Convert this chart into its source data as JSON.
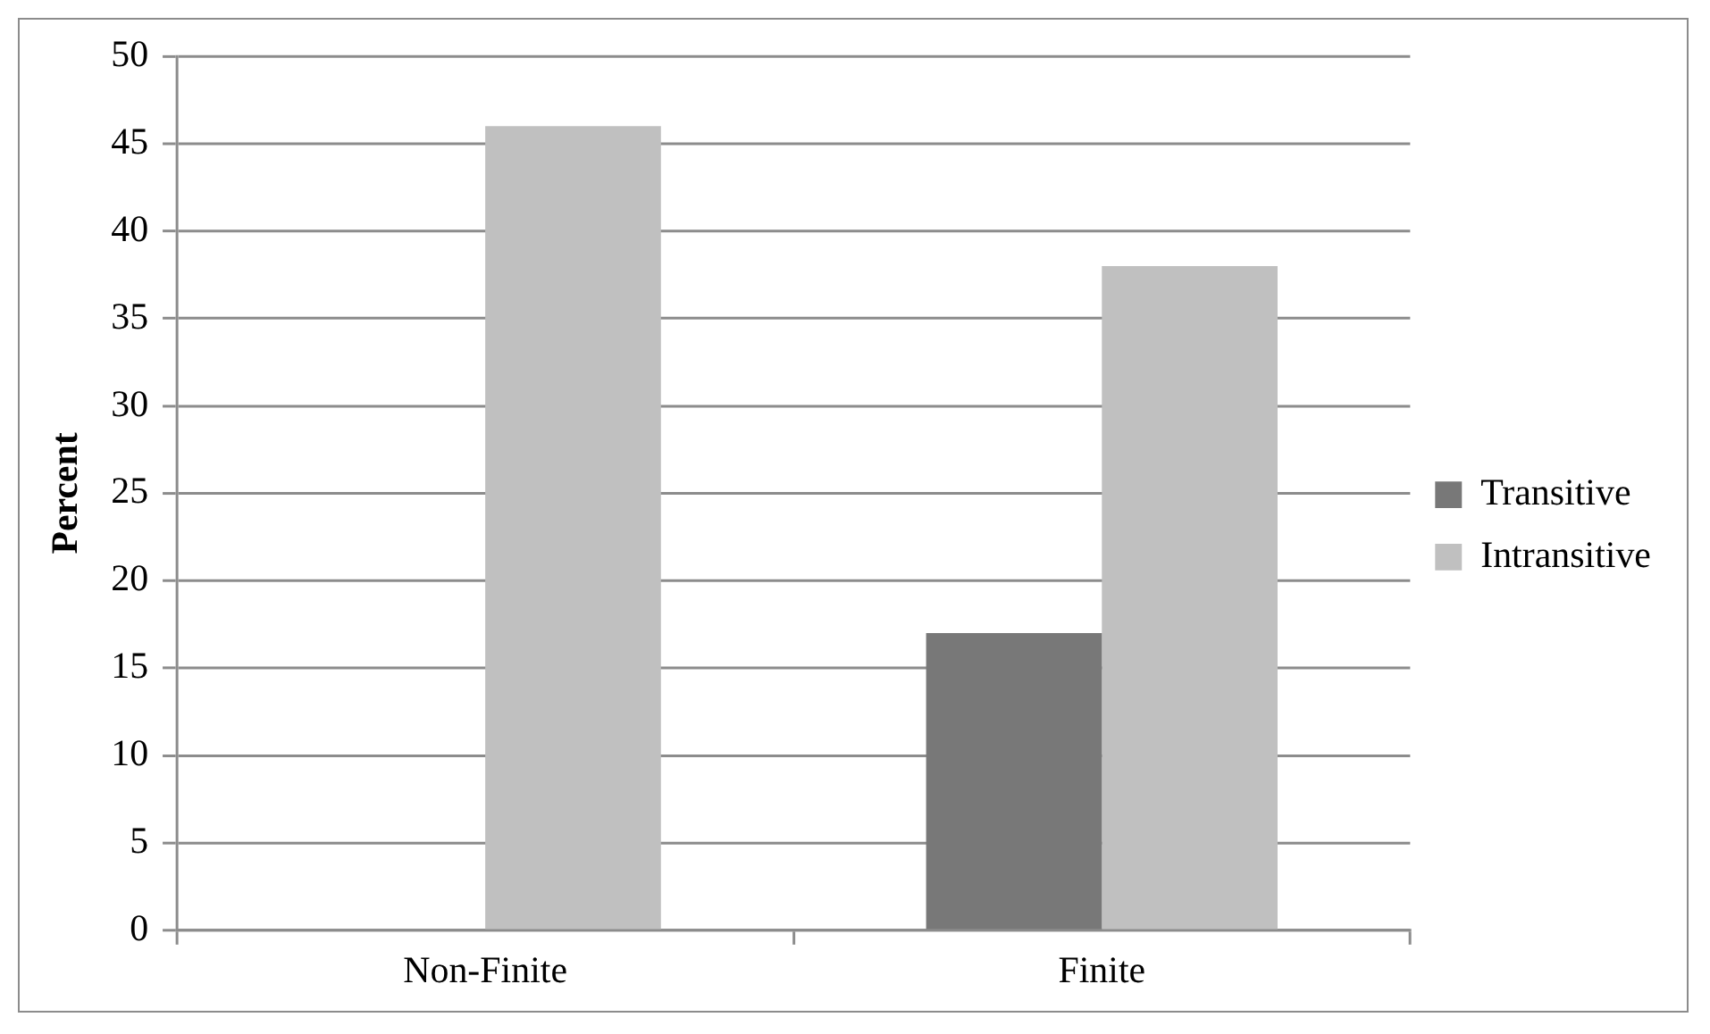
{
  "chart_data": {
    "type": "bar",
    "ylabel": "Percent",
    "categories": [
      "Non-Finite",
      "Finite"
    ],
    "series": [
      {
        "name": "Transitive",
        "color": "#787878",
        "values": [
          0,
          17
        ]
      },
      {
        "name": "Intransitive",
        "color": "#c0c0c0",
        "values": [
          46,
          38
        ]
      }
    ],
    "ylim": [
      0,
      50
    ],
    "yticks": [
      0,
      5,
      10,
      15,
      20,
      25,
      30,
      35,
      40,
      45,
      50
    ],
    "grid": "y",
    "legend": "right"
  }
}
